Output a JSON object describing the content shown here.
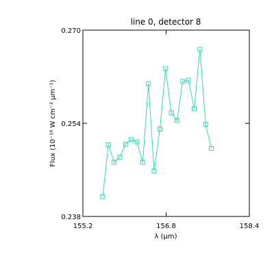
{
  "chart_data": {
    "type": "line",
    "title": "line 0, detector 8",
    "xlabel": "λ (μm)",
    "ylabel": "Flux (10⁻¹⁸ W cm⁻² μm⁻¹)",
    "xlim": [
      155.2,
      158.4
    ],
    "ylim": [
      0.238,
      0.27
    ],
    "xticks": [
      155.2,
      156.8,
      158.4
    ],
    "xtick_labels": [
      "155.2",
      "156.8",
      "158.4"
    ],
    "yticks": [
      0.238,
      0.254,
      0.27
    ],
    "ytick_labels": [
      "0.238",
      "0.254",
      "0.270"
    ],
    "grid": false,
    "colors": {
      "series": "#30d8b8",
      "axis": "#000000"
    },
    "series": [
      {
        "marker": "square",
        "x": [
          155.58,
          155.69,
          155.8,
          155.91,
          156.02,
          156.13,
          156.24,
          156.35,
          156.46,
          156.57,
          156.68,
          156.79,
          156.9,
          157.01,
          157.12,
          157.23,
          157.34,
          157.45,
          157.56,
          157.67
        ],
        "y": [
          0.2414,
          0.2503,
          0.2473,
          0.2482,
          0.2504,
          0.2512,
          0.2508,
          0.2473,
          0.2608,
          0.2458,
          0.253,
          0.2634,
          0.2558,
          0.2545,
          0.2612,
          0.2614,
          0.2565,
          0.2667,
          0.2538,
          0.2497
        ]
      }
    ]
  }
}
